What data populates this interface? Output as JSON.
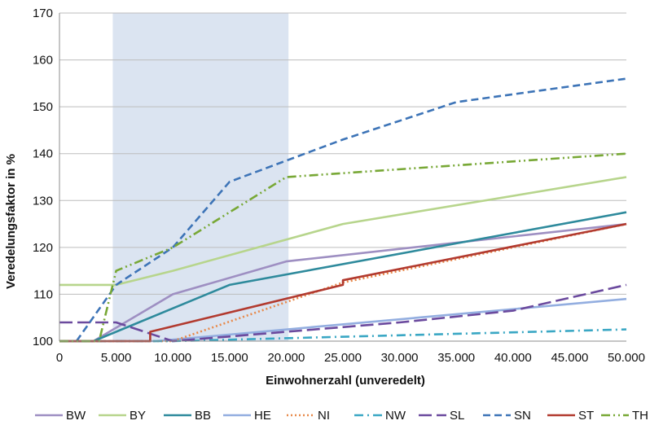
{
  "chart_data": {
    "type": "line",
    "title": "",
    "xlabel": "Einwohnerzahl (unveredelt)",
    "ylabel": "Veredelungsfaktor in %",
    "xlim": [
      0,
      50000
    ],
    "ylim": [
      100,
      170
    ],
    "x_ticks": [
      0,
      5000,
      10000,
      15000,
      20000,
      25000,
      30000,
      35000,
      40000,
      45000,
      50000
    ],
    "x_tick_labels": [
      "0",
      "5.000",
      "10.000",
      "15.000",
      "20.000",
      "25.000",
      "30.000",
      "35.000",
      "40.000",
      "45.000",
      "50.000"
    ],
    "y_ticks": [
      100,
      110,
      120,
      130,
      140,
      150,
      160,
      170
    ],
    "y_tick_labels": [
      "100",
      "110",
      "120",
      "130",
      "140",
      "150",
      "160",
      "170"
    ],
    "grid": "horizontal",
    "legend_position": "bottom",
    "highlight_band": {
      "x_from": 4700,
      "x_to": 20200,
      "color": "#dbe4f1"
    },
    "series": [
      {
        "name": "BW",
        "color": "#9e8fc2",
        "dash": "solid",
        "points": [
          [
            0,
            100
          ],
          [
            3000,
            100
          ],
          [
            10000,
            110
          ],
          [
            20000,
            117
          ],
          [
            50000,
            125
          ]
        ]
      },
      {
        "name": "BY",
        "color": "#b7d58c",
        "dash": "solid",
        "points": [
          [
            0,
            112
          ],
          [
            5000,
            112
          ],
          [
            10000,
            115
          ],
          [
            25000,
            125
          ],
          [
            50000,
            135
          ]
        ]
      },
      {
        "name": "BB",
        "color": "#2e8a9c",
        "dash": "solid",
        "points": [
          [
            0,
            100
          ],
          [
            3000,
            100
          ],
          [
            15000,
            112
          ],
          [
            50000,
            127.5
          ]
        ]
      },
      {
        "name": "HE",
        "color": "#93aee0",
        "dash": "solid",
        "points": [
          [
            0,
            100
          ],
          [
            8500,
            100
          ],
          [
            50000,
            109
          ]
        ]
      },
      {
        "name": "NI",
        "color": "#e8894a",
        "dash": "dotted",
        "points": [
          [
            0,
            100
          ],
          [
            10000,
            100
          ],
          [
            25000,
            112.5
          ],
          [
            50000,
            125
          ]
        ]
      },
      {
        "name": "NW",
        "color": "#3aa7c4",
        "dash": "dashdot",
        "points": [
          [
            0,
            100
          ],
          [
            10000,
            100
          ],
          [
            50000,
            102.5
          ]
        ]
      },
      {
        "name": "SL",
        "color": "#6b4a9e",
        "dash": "longdash",
        "points": [
          [
            0,
            104
          ],
          [
            5000,
            104
          ],
          [
            10000,
            100
          ],
          [
            30000,
            104
          ],
          [
            40000,
            106.5
          ],
          [
            50000,
            112
          ]
        ]
      },
      {
        "name": "SN",
        "color": "#3d74b7",
        "dash": "dashed",
        "points": [
          [
            1500,
            100
          ],
          [
            5000,
            112
          ],
          [
            10000,
            120
          ],
          [
            15000,
            134
          ],
          [
            20000,
            138.5
          ],
          [
            25000,
            143
          ],
          [
            35000,
            151
          ],
          [
            50000,
            156
          ]
        ]
      },
      {
        "name": "ST",
        "color": "#b23a2f",
        "dash": "solid",
        "points": [
          [
            0,
            100
          ],
          [
            8000,
            100
          ],
          [
            8000,
            102
          ],
          [
            25000,
            112
          ],
          [
            25000,
            113
          ],
          [
            50000,
            125
          ]
        ]
      },
      {
        "name": "TH",
        "color": "#78a836",
        "dash": "dashdotdot",
        "points": [
          [
            0,
            100
          ],
          [
            3500,
            100
          ],
          [
            5000,
            115
          ],
          [
            10000,
            120
          ],
          [
            20000,
            135
          ],
          [
            50000,
            140
          ]
        ]
      }
    ]
  }
}
